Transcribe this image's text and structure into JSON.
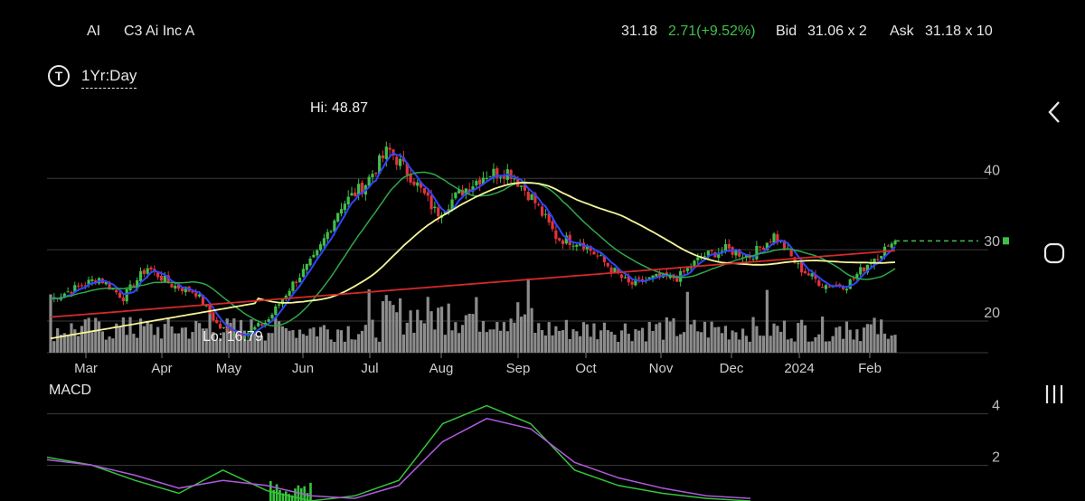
{
  "header": {
    "symbol": "AI",
    "name": "C3 Ai Inc A",
    "last": "31.18",
    "change": "2.71(+9.52%)",
    "bid_label": "Bid",
    "bid": "31.06 x 2",
    "ask_label": "Ask",
    "ask": "31.18 x 10"
  },
  "period": {
    "icon": "T",
    "label": "1Yr:Day"
  },
  "nav": {
    "back_icon": "chevron-left-icon",
    "home_icon": "home-circle-icon",
    "recent_icon": "recent-apps-icon"
  },
  "colors": {
    "up": "#3fbf4a",
    "down": "#e2343b",
    "ma_fast": "#2f45ff",
    "ma_mid": "#2ea84a",
    "ma_slow": "#f5f59a",
    "ma_long": "#d22a2a",
    "volume": "#8c8c8c",
    "macd_line": "#36c43a",
    "signal_line": "#b05ae0",
    "last_price": "#3fbf4a"
  },
  "chart_data": [
    {
      "type": "candlestick",
      "title": "",
      "hi_label": "Hi: 48.87",
      "lo_label": "Lo: 16.79",
      "y_ticks": [
        "40",
        "30",
        "20"
      ],
      "ylim": [
        15.5,
        51
      ],
      "x_labels": [
        "Mar",
        "Apr",
        "May",
        "Jun",
        "Jul",
        "Aug",
        "Sep",
        "Oct",
        "Nov",
        "Dec",
        "2024",
        "Feb"
      ],
      "close_anchors": [
        [
          "Mar",
          23.0
        ],
        [
          "",
          24.5
        ],
        [
          "",
          26.0
        ],
        [
          "",
          23.2
        ],
        [
          "Apr",
          27.5
        ],
        [
          "",
          25.0
        ],
        [
          "",
          24.0
        ],
        [
          "May",
          19.0
        ],
        [
          "",
          18.0
        ],
        [
          "",
          20.0
        ],
        [
          "",
          25.0
        ],
        [
          "",
          29.0
        ],
        [
          "Jun",
          36.0
        ],
        [
          "",
          39.0
        ],
        [
          "",
          44.0
        ],
        [
          "",
          40.0
        ],
        [
          "Jul",
          35.0
        ],
        [
          "",
          38.0
        ],
        [
          "",
          40.5
        ],
        [
          "Aug",
          41.0
        ],
        [
          "",
          37.0
        ],
        [
          "",
          31.5
        ],
        [
          "Sep",
          31.0
        ],
        [
          "",
          28.0
        ],
        [
          "Oct",
          25.0
        ],
        [
          "",
          26.0
        ],
        [
          "Nov",
          26.0
        ],
        [
          "",
          29.0
        ],
        [
          "Dec",
          30.0
        ],
        [
          "",
          29.0
        ],
        [
          "",
          32.0
        ],
        [
          "2024",
          27.5
        ],
        [
          "",
          25.0
        ],
        [
          "Feb",
          25.0
        ],
        [
          "",
          28.47
        ],
        [
          "",
          31.18
        ]
      ],
      "moving_averages": [
        "ma_fast",
        "ma_mid",
        "ma_slow",
        "ma_long"
      ],
      "last_price_marker": 31.18
    },
    {
      "type": "bar",
      "title": "",
      "series": [
        {
          "name": "",
          "values": []
        }
      ],
      "note": "volume bars under price pane, no axis printed"
    },
    {
      "type": "line",
      "title": "MACD",
      "y_ticks": [
        "4",
        "2"
      ],
      "ylim": [
        0.6,
        4.6
      ],
      "series": [
        {
          "name": "",
          "values": [
            2.3,
            2.0,
            1.4,
            0.9,
            1.8,
            1.0,
            0.6,
            0.8,
            1.4,
            3.6,
            4.3,
            3.6,
            1.8,
            1.2,
            0.9,
            0.7,
            0.6
          ]
        },
        {
          "name": "",
          "values": [
            2.2,
            2.0,
            1.6,
            1.1,
            1.4,
            1.2,
            0.8,
            0.7,
            1.2,
            2.9,
            3.8,
            3.4,
            2.1,
            1.5,
            1.1,
            0.8,
            0.7
          ]
        }
      ]
    }
  ]
}
